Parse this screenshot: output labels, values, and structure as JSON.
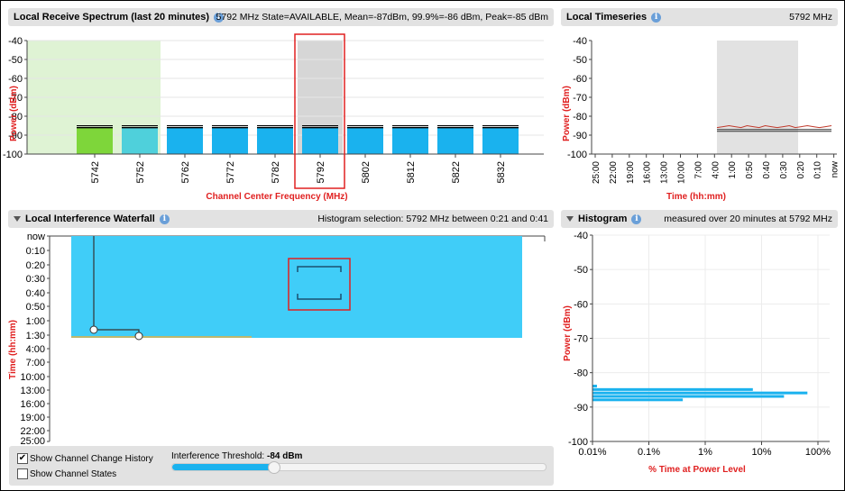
{
  "spectrum": {
    "title": "Local Receive Spectrum (last 20 minutes)",
    "status": "5792 MHz State=AVAILABLE, Mean=-87dBm, 99.9%=-86 dBm, Peak=-85 dBm",
    "ylabel": "Power (dBm)",
    "xlabel": "Channel Center Frequency (MHz)",
    "yticks": [
      "-40",
      "-50",
      "-60",
      "-70",
      "-80",
      "-90",
      "-100"
    ],
    "channels": [
      "5742",
      "5752",
      "5762",
      "5772",
      "5782",
      "5792",
      "5802",
      "5812",
      "5822",
      "5832"
    ],
    "selected_channel": "5792",
    "colors": {
      "bar": "#1ab2ee",
      "bar_first": "#7ed63a",
      "bar_second": "#4fd0db",
      "shade_green": "#dff3d4",
      "selected_bg": "#d6d6d6",
      "selected_border": "#e02020",
      "axis_label": "#e02020"
    }
  },
  "timeseries": {
    "title": "Local Timeseries",
    "freq": "5792 MHz",
    "ylabel": "Power (dBm)",
    "xlabel": "Time (hh:mm)",
    "yticks": [
      "-40",
      "-50",
      "-60",
      "-70",
      "-80",
      "-90",
      "-100"
    ],
    "xticks": [
      "25:00",
      "22:00",
      "19:00",
      "16:00",
      "13:00",
      "10:00",
      "7:00",
      "4:00",
      "1:00",
      "0:50",
      "0:40",
      "0:30",
      "0:20",
      "0:10",
      "now"
    ]
  },
  "waterfall": {
    "title": "Local Interference Waterfall",
    "selection": "Histogram selection: 5792 MHz between 0:21 and 0:41",
    "ylabel": "Time (hh:mm)",
    "yticks": [
      "now",
      "0:10",
      "0:20",
      "0:30",
      "0:40",
      "0:50",
      "1:00",
      "1:30",
      "4:00",
      "7:00",
      "10:00",
      "13:00",
      "16:00",
      "19:00",
      "22:00",
      "25:00"
    ]
  },
  "histogram": {
    "title": "Histogram",
    "note": "measured over 20 minutes at 5792 MHz",
    "ylabel": "Power (dBm)",
    "xlabel": "% Time at Power Level",
    "yticks": [
      "-40",
      "-50",
      "-60",
      "-70",
      "-80",
      "-90",
      "-100"
    ],
    "xticks": [
      "0.01%",
      "0.1%",
      "1%",
      "10%",
      "100%"
    ]
  },
  "controls": {
    "show_channel_change_history": "Show Channel Change History",
    "show_channel_change_history_checked": "✔",
    "show_channel_states": "Show Channel States",
    "threshold_label": "Interference Threshold: ",
    "threshold_value": "-84 dBm",
    "threshold_fraction": 0.27
  },
  "chart_data": [
    {
      "type": "bar",
      "title": "Local Receive Spectrum (last 20 minutes)",
      "xlabel": "Channel Center Frequency (MHz)",
      "ylabel": "Power (dBm)",
      "ylim": [
        -100,
        -40
      ],
      "categories": [
        "5742",
        "5752",
        "5762",
        "5772",
        "5782",
        "5792",
        "5802",
        "5812",
        "5822",
        "5832"
      ],
      "series": [
        {
          "values": [
            -86,
            -86,
            -86,
            -86,
            -86,
            -86,
            -86,
            -86,
            -86,
            -86
          ]
        }
      ],
      "peak": [
        -85,
        -85,
        -85,
        -85,
        -85,
        -85,
        -85,
        -85,
        -85,
        -85
      ]
    },
    {
      "type": "line",
      "title": "Local Timeseries",
      "xlabel": "Time (hh:mm)",
      "ylabel": "Power (dBm)",
      "ylim": [
        -100,
        -40
      ],
      "series": [
        {
          "values": [
            -86,
            -85.5,
            -85,
            -85.5,
            -86,
            -85,
            -85.5,
            -86,
            -85,
            -85.5,
            -86,
            -85.5,
            -85,
            -86,
            -85.5,
            -85,
            -85.5,
            -86,
            -85.5,
            -85
          ]
        },
        {
          "values": [
            -87,
            -87,
            -87,
            -87,
            -87,
            -87,
            -87,
            -87,
            -87,
            -87,
            -87,
            -87,
            -87,
            -87,
            -87,
            -87,
            -87,
            -87,
            -87,
            -87
          ]
        },
        {
          "values": [
            -88,
            -88,
            -88,
            -88,
            -88,
            -88,
            -88,
            -88,
            -88,
            -88,
            -88,
            -88,
            -88,
            -88,
            -88,
            -88,
            -88,
            -88,
            -88,
            -88
          ]
        }
      ]
    },
    {
      "type": "bar",
      "title": "Histogram",
      "xlabel": "% Time at Power Level",
      "ylabel": "Power (dBm)",
      "ylim": [
        -100,
        -40
      ],
      "xscale": "log",
      "categories": [
        "-84",
        "-85",
        "-86",
        "-87",
        "-88"
      ],
      "values": [
        0.012,
        7,
        65,
        25,
        0.4
      ]
    }
  ]
}
